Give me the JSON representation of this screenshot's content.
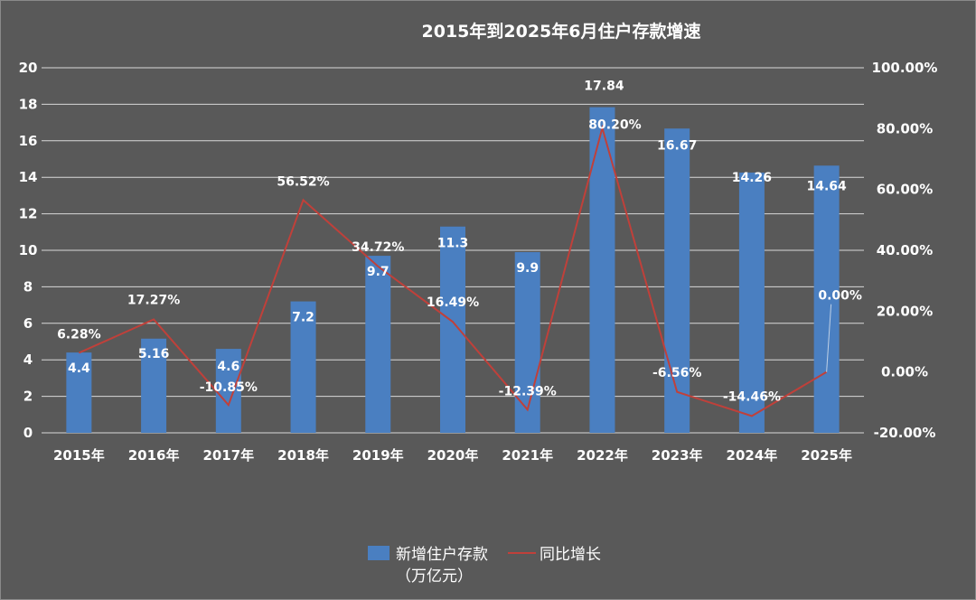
{
  "chart_data": {
    "type": "bar+line",
    "title": "2015年到2025年6月住户存款增速",
    "categories": [
      "2015年",
      "2016年",
      "2017年",
      "2018年",
      "2019年",
      "2020年",
      "2021年",
      "2022年",
      "2023年",
      "2024年",
      "2025年"
    ],
    "series": [
      {
        "name": "新增住户存款（万亿元）",
        "name_line1": "新增住户存款",
        "name_line2": "（万亿元）",
        "type": "bar",
        "axis": "left",
        "values": [
          4.4,
          5.16,
          4.6,
          7.2,
          9.7,
          11.3,
          9.9,
          17.84,
          16.67,
          14.26,
          14.64
        ],
        "labels": [
          "4.4",
          "5.16",
          "4.6",
          "7.2",
          "9.7",
          "11.3",
          "9.9",
          "17.84",
          "16.67",
          "14.26",
          "14.64"
        ]
      },
      {
        "name": "同比增长",
        "type": "line",
        "axis": "right",
        "values": [
          6.28,
          17.27,
          -10.85,
          56.52,
          34.72,
          16.49,
          -12.39,
          80.2,
          -6.56,
          -14.46,
          0.0
        ],
        "labels": [
          "6.28%",
          "17.27%",
          "-10.85%",
          "56.52%",
          "34.72%",
          "16.49%",
          "-12.39%",
          "80.20%",
          "-6.56%",
          "-14.46%",
          "0.00%"
        ]
      }
    ],
    "ylim_left": [
      0,
      20
    ],
    "yticks_left": [
      "0",
      "2",
      "4",
      "6",
      "8",
      "10",
      "12",
      "14",
      "16",
      "18",
      "20"
    ],
    "ylim_right": [
      -20,
      100
    ],
    "yticks_right": [
      "-20.00%",
      "0.00%",
      "20.00%",
      "40.00%",
      "60.00%",
      "80.00%",
      "100.00%"
    ],
    "grid": true,
    "legend_placement": "bottom",
    "colors": {
      "background": "#595959",
      "bar": "#4a7fc1",
      "line": "#c0403a",
      "grid": "#d9d9d9",
      "text": "#ffffff"
    }
  }
}
